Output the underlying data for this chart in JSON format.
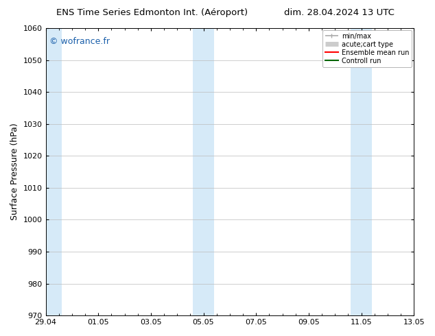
{
  "title_left": "ENS Time Series Edmonton Int. (Aéroport)",
  "title_right": "dim. 28.04.2024 13 UTC",
  "ylabel": "Surface Pressure (hPa)",
  "ylim": [
    970,
    1060
  ],
  "yticks": [
    970,
    980,
    990,
    1000,
    1010,
    1020,
    1030,
    1040,
    1050,
    1060
  ],
  "xlim_start": 0,
  "xlim_end": 14,
  "xtick_labels": [
    "29.04",
    "01.05",
    "03.05",
    "05.05",
    "07.05",
    "09.05",
    "11.05",
    "13.05"
  ],
  "xtick_positions": [
    0,
    2,
    4,
    6,
    8,
    10,
    12,
    14
  ],
  "shaded_bands": [
    {
      "xmin": -0.1,
      "xmax": 0.6
    },
    {
      "xmin": 5.6,
      "xmax": 6.4
    },
    {
      "xmin": 11.6,
      "xmax": 12.4
    }
  ],
  "shade_color": "#d6eaf8",
  "watermark_text": "© wofrance.fr",
  "watermark_color": "#1a5faa",
  "background_color": "#ffffff",
  "plot_bg_color": "#ffffff",
  "grid_color": "#bbbbbb",
  "legend_items": [
    {
      "label": "min/max",
      "color": "#aaaaaa",
      "lw": 1.2
    },
    {
      "label": "acute;cart type",
      "color": "#cccccc",
      "lw": 5
    },
    {
      "label": "Ensemble mean run",
      "color": "#ff0000",
      "lw": 1.5
    },
    {
      "label": "Controll run",
      "color": "#006400",
      "lw": 1.5
    }
  ],
  "title_fontsize": 9.5,
  "tick_fontsize": 8,
  "label_fontsize": 9,
  "watermark_fontsize": 9
}
